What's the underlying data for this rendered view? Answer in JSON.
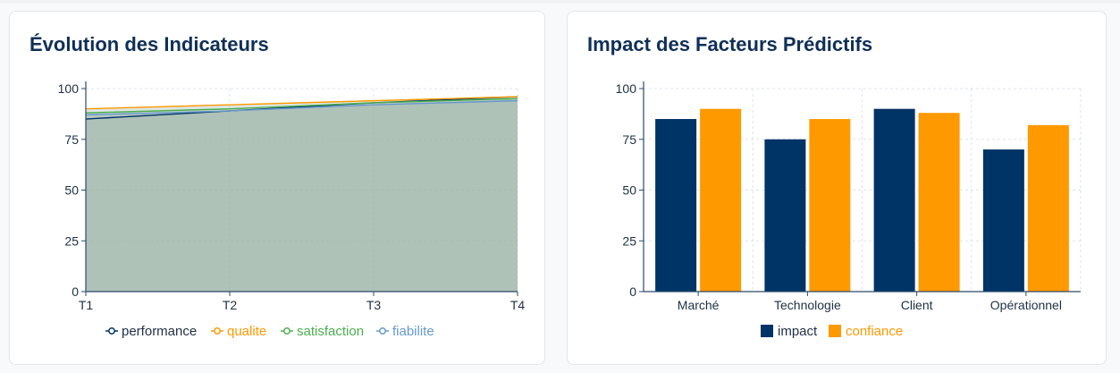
{
  "colors": {
    "navy": "#003366",
    "orange": "#FF9900",
    "green": "#4CAF50",
    "blue": "#6699CC",
    "area_fill": "#9db5aa",
    "axis": "#2c4a6b",
    "grid": "#dde3e8",
    "title": "#0f2f57"
  },
  "left_card": {
    "title": "Évolution des Indicateurs",
    "chart_data": {
      "type": "area",
      "x": [
        "T1",
        "T2",
        "T3",
        "T4"
      ],
      "ylim": [
        0,
        100
      ],
      "yticks": [
        0,
        25,
        50,
        75,
        100
      ],
      "grid": true,
      "legend": "bottom",
      "series": [
        {
          "name": "performance",
          "values": [
            85,
            89,
            93,
            96
          ],
          "color": "#003366"
        },
        {
          "name": "qualite",
          "values": [
            90,
            92,
            94,
            96
          ],
          "color": "#FF9900"
        },
        {
          "name": "satisfaction",
          "values": [
            88,
            90,
            93,
            95
          ],
          "color": "#4CAF50"
        },
        {
          "name": "fiabilite",
          "values": [
            87,
            89,
            92,
            94
          ],
          "color": "#6699CC"
        }
      ]
    }
  },
  "right_card": {
    "title": "Impact des Facteurs Prédictifs",
    "chart_data": {
      "type": "bar",
      "categories": [
        "Marché",
        "Technologie",
        "Client",
        "Opérationnel"
      ],
      "ylim": [
        0,
        100
      ],
      "yticks": [
        0,
        25,
        50,
        75,
        100
      ],
      "grid": true,
      "legend": "bottom",
      "series": [
        {
          "name": "impact",
          "values": [
            85,
            75,
            90,
            70
          ],
          "color": "#003366"
        },
        {
          "name": "confiance",
          "values": [
            90,
            85,
            88,
            82
          ],
          "color": "#FF9900"
        }
      ]
    }
  }
}
